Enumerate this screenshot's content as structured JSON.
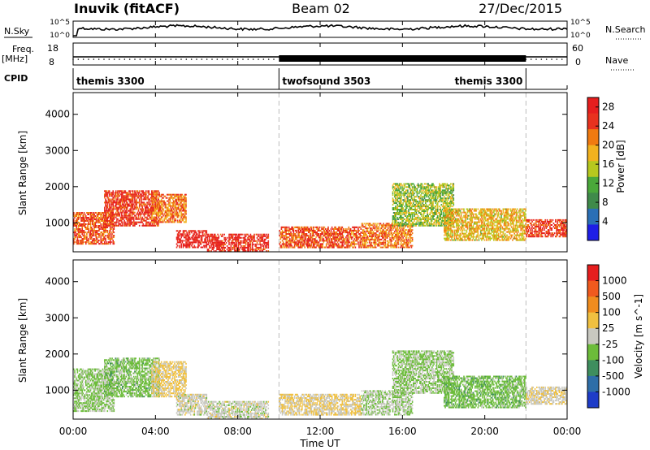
{
  "header": {
    "left": "Inuvik (fitACF)",
    "center": "Beam 02",
    "right": "27/Dec/2015"
  },
  "nsky_panel": {
    "label": "N.Sky",
    "right_label": "N.Search",
    "ticks": [
      "10^5",
      "10^0"
    ]
  },
  "freq_panel": {
    "label": "Freq.",
    "unit": "[MHz]",
    "left_ticks": [
      "18",
      "8"
    ],
    "right_ticks": [
      "60",
      "0"
    ],
    "right_label": "Nave"
  },
  "cpid_panel": {
    "label": "CPID",
    "modes": [
      {
        "name": "themis 3300",
        "start_hour": 0,
        "end_hour": 10
      },
      {
        "name": "twofsound 3503",
        "start_hour": 10,
        "end_hour": 22
      },
      {
        "name": "themis 3300",
        "start_hour": 22,
        "end_hour": 24
      }
    ]
  },
  "xaxis": {
    "label": "Time UT",
    "ticks": [
      "00:00",
      "04:00",
      "08:00",
      "12:00",
      "16:00",
      "20:00",
      "00:00"
    ]
  },
  "colors": {
    "power": [
      "#1e1ee6",
      "#2a6fb6",
      "#3f8a4a",
      "#4aa83a",
      "#b6c81e",
      "#f2b21e",
      "#f07a10",
      "#e8321e",
      "#e61e1e"
    ],
    "velocity": [
      "#1e3cc8",
      "#2e6ea8",
      "#3e8e5e",
      "#6cbc3a",
      "#c8c8c0",
      "#f0c040",
      "#f08c1e",
      "#f05a1e",
      "#e61e1e"
    ]
  },
  "chart_data": [
    {
      "type": "heatmap",
      "panel": "power",
      "ylabel": "Slant Range [km]",
      "yticks": [
        1000,
        2000,
        3000,
        4000
      ],
      "ylim": [
        200,
        4600
      ],
      "xlim": [
        0,
        24
      ],
      "colorbar": {
        "label": "Power [dB]",
        "ticks": [
          "4",
          "8",
          "12",
          "16",
          "20",
          "24",
          "28"
        ],
        "range": [
          0,
          30
        ]
      },
      "scatter_regions": [
        {
          "t0": 0.0,
          "t1": 2.0,
          "r0": 400,
          "r1": 1300,
          "value": 24
        },
        {
          "t0": 1.5,
          "t1": 4.2,
          "r0": 900,
          "r1": 1900,
          "value": 26
        },
        {
          "t0": 3.8,
          "t1": 5.5,
          "r0": 1000,
          "r1": 1800,
          "value": 22
        },
        {
          "t0": 5.0,
          "t1": 6.5,
          "r0": 300,
          "r1": 800,
          "value": 28
        },
        {
          "t0": 6.5,
          "t1": 9.5,
          "r0": 200,
          "r1": 700,
          "value": 27
        },
        {
          "t0": 10.0,
          "t1": 14.0,
          "r0": 300,
          "r1": 900,
          "value": 24
        },
        {
          "t0": 14.0,
          "t1": 16.5,
          "r0": 300,
          "r1": 1000,
          "value": 22
        },
        {
          "t0": 15.5,
          "t1": 18.5,
          "r0": 900,
          "r1": 2100,
          "value": 14
        },
        {
          "t0": 18.0,
          "t1": 22.0,
          "r0": 500,
          "r1": 1400,
          "value": 18
        },
        {
          "t0": 22.0,
          "t1": 24.0,
          "r0": 600,
          "r1": 1100,
          "value": 26
        }
      ]
    },
    {
      "type": "heatmap",
      "panel": "velocity",
      "ylabel": "Slant Range [km]",
      "yticks": [
        1000,
        2000,
        3000,
        4000
      ],
      "ylim": [
        200,
        4600
      ],
      "xlim": [
        0,
        24
      ],
      "colorbar": {
        "label": "Velocity [m s^-1]",
        "ticks": [
          "1000",
          "500",
          "100",
          "25",
          "-25",
          "-100",
          "-500",
          "-1000"
        ],
        "range": [
          -1000,
          1000
        ]
      },
      "scatter_regions": [
        {
          "t0": 0.0,
          "t1": 2.0,
          "r0": 400,
          "r1": 1600,
          "value": -150
        },
        {
          "t0": 1.5,
          "t1": 4.2,
          "r0": 800,
          "r1": 1900,
          "value": -200
        },
        {
          "t0": 3.8,
          "t1": 5.5,
          "r0": 800,
          "r1": 1800,
          "value": 150
        },
        {
          "t0": 5.0,
          "t1": 6.5,
          "r0": 300,
          "r1": 900,
          "value": 0
        },
        {
          "t0": 6.5,
          "t1": 9.5,
          "r0": 200,
          "r1": 700,
          "value": 0
        },
        {
          "t0": 10.0,
          "t1": 14.0,
          "r0": 300,
          "r1": 900,
          "value": 120
        },
        {
          "t0": 14.0,
          "t1": 16.5,
          "r0": 300,
          "r1": 1000,
          "value": -80
        },
        {
          "t0": 15.5,
          "t1": 18.5,
          "r0": 900,
          "r1": 2100,
          "value": -140
        },
        {
          "t0": 18.0,
          "t1": 22.0,
          "r0": 500,
          "r1": 1400,
          "value": -220
        },
        {
          "t0": 22.0,
          "t1": 24.0,
          "r0": 600,
          "r1": 1100,
          "value": 60
        }
      ]
    }
  ]
}
